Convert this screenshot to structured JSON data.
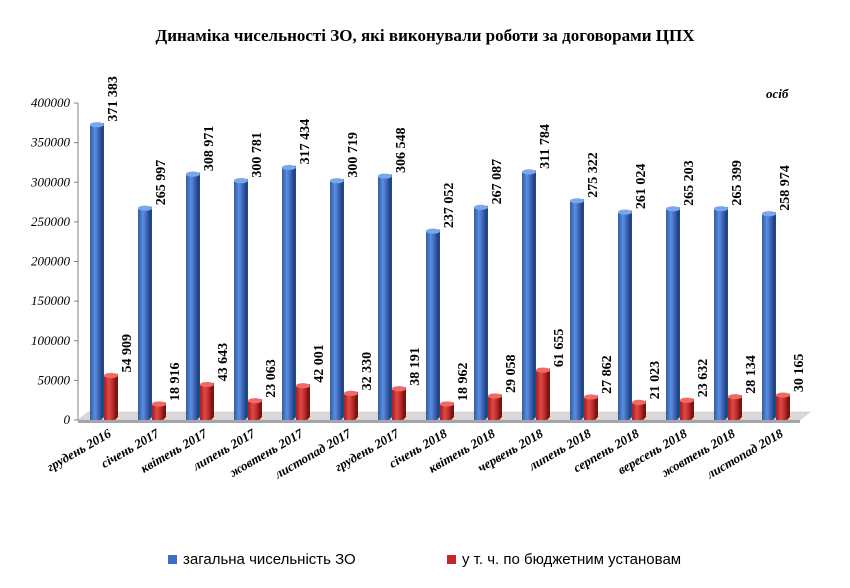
{
  "chart_data": {
    "type": "bar",
    "title": "Динаміка чисельності ЗО, які виконували роботи за договорами ЦПХ",
    "unit_label": "осіб",
    "categories": [
      "грудень 2016",
      "січень 2017",
      "квітень 2017",
      "липень 2017",
      "жовтень 2017",
      "листопад 2017",
      "грудень 2017",
      "січень 2018",
      "квітень 2018",
      "червень 2018",
      "липень 2018",
      "серпень 2018",
      "вересень 2018",
      "жовтень 2018",
      "листопад 2018"
    ],
    "series": [
      {
        "name": "загальна чисельність ЗО",
        "color": "#3f6fc4",
        "values": [
          371383,
          265997,
          308971,
          300781,
          317434,
          300719,
          306548,
          237052,
          267087,
          311784,
          275322,
          261024,
          265203,
          265399,
          258974
        ],
        "labels": [
          "371 383",
          "265 997",
          "308 971",
          "300 781",
          "317 434",
          "300 719",
          "306 548",
          "237 052",
          "267 087",
          "311 784",
          "275 322",
          "261 024",
          "265 203",
          "265 399",
          "258 974"
        ]
      },
      {
        "name": "у т. ч. по  бюджетним установам",
        "color": "#c0282a",
        "values": [
          54909,
          18916,
          43643,
          23063,
          42001,
          32330,
          38191,
          18962,
          29058,
          61655,
          27862,
          21023,
          23632,
          28134,
          30165
        ],
        "labels": [
          "54 909",
          "18 916",
          "43 643",
          "23 063",
          "42 001",
          "32 330",
          "38 191",
          "18 962",
          "29 058",
          "61 655",
          "27 862",
          "21 023",
          "23 632",
          "28 134",
          "30 165"
        ]
      }
    ],
    "yticks": [
      "0",
      "50000",
      "100000",
      "150000",
      "200000",
      "250000",
      "300000",
      "350000",
      "400000"
    ],
    "ylim": [
      0,
      400000
    ],
    "grid": false,
    "legend_position": "bottom"
  }
}
